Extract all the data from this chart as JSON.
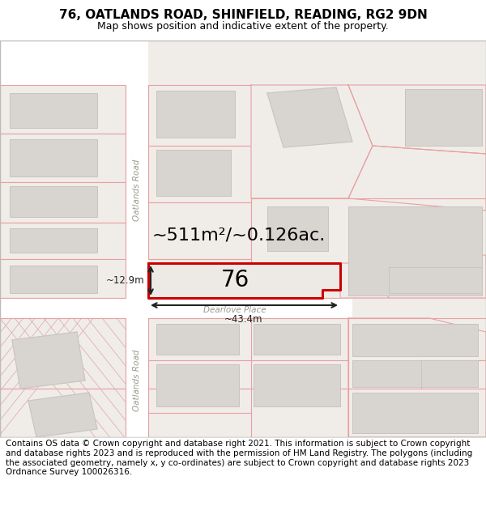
{
  "title": "76, OATLANDS ROAD, SHINFIELD, READING, RG2 9DN",
  "subtitle": "Map shows position and indicative extent of the property.",
  "footer": "Contains OS data © Crown copyright and database right 2021. This information is subject to Crown copyright and database rights 2023 and is reproduced with the permission of HM Land Registry. The polygons (including the associated geometry, namely x, y co-ordinates) are subject to Crown copyright and database rights 2023 Ordnance Survey 100026316.",
  "area_text": "~511m²/~0.126ac.",
  "number_text": "76",
  "dim_width": "~43.4m",
  "dim_height": "~12.9m",
  "road_label_top": "Oatlands Road",
  "road_label_bottom": "Oatlands Road",
  "road_label_middle": "Dearlove Place",
  "map_bg": "#f2efec",
  "road_bg": "#ffffff",
  "plot_outline": "#e8a0a0",
  "highlight_outline": "#cc0000",
  "bldg_fill": "#d8d4d0",
  "bldg_edge": "#c8c4c0",
  "title_fontsize": 11,
  "subtitle_fontsize": 9,
  "footer_fontsize": 7.5
}
